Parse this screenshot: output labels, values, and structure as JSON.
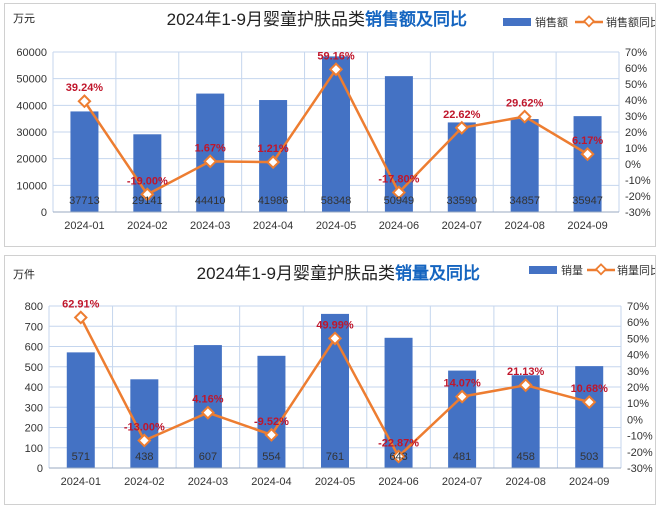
{
  "colors": {
    "bar": "#4472c4",
    "line": "#ed7d31",
    "pct_label": "#c0162b",
    "title_accent": "#1565c0",
    "grid": "#c5d6ee"
  },
  "chart_data": [
    {
      "type": "bar",
      "title_plain": "2024年1-9月婴童护肤品类",
      "title_strong": "销售额及同比",
      "unit": "万元",
      "categories": [
        "2024-01",
        "2024-02",
        "2024-03",
        "2024-04",
        "2024-05",
        "2024-06",
        "2024-07",
        "2024-08",
        "2024-09"
      ],
      "series": [
        {
          "name": "销售额",
          "type": "bar",
          "axis": "left",
          "values": [
            37713,
            29141,
            44410,
            41986,
            58348,
            50949,
            33590,
            34857,
            35947
          ]
        },
        {
          "name": "销售额同比",
          "type": "line",
          "axis": "right",
          "values": [
            39.24,
            -19.0,
            1.67,
            1.21,
            59.16,
            -17.8,
            22.62,
            29.62,
            6.17
          ]
        }
      ],
      "value_labels": [
        "37713",
        "29141",
        "44410",
        "41986",
        "58348",
        "50949",
        "33590",
        "34857",
        "35947"
      ],
      "pct_labels": [
        "39.24%",
        "-19.00%",
        "1.67%",
        "1.21%",
        "59.16%",
        "-17.80%",
        "22.62%",
        "29.62%",
        "6.17%"
      ],
      "ylim": [
        0,
        60000
      ],
      "yticks": [
        0,
        10000,
        20000,
        30000,
        40000,
        50000,
        60000
      ],
      "ytick_labels": [
        "0",
        "10000",
        "20000",
        "30000",
        "40000",
        "50000",
        "60000"
      ],
      "y2lim": [
        -30,
        70
      ],
      "y2ticks": [
        -30,
        -20,
        -10,
        0,
        10,
        20,
        30,
        40,
        50,
        60,
        70
      ],
      "y2tick_labels": [
        "-30%",
        "-20%",
        "-10%",
        "0%",
        "10%",
        "20%",
        "30%",
        "40%",
        "50%",
        "60%",
        "70%"
      ],
      "legend": [
        "销售额",
        "销售额同比"
      ],
      "legend_position": "top-right",
      "grid": true
    },
    {
      "type": "bar",
      "title_plain": "2024年1-9月婴童护肤品类",
      "title_strong": "销量及同比",
      "unit": "万件",
      "categories": [
        "2024-01",
        "2024-02",
        "2024-03",
        "2024-04",
        "2024-05",
        "2024-06",
        "2024-07",
        "2024-08",
        "2024-09"
      ],
      "series": [
        {
          "name": "销量",
          "type": "bar",
          "axis": "left",
          "values": [
            571,
            438,
            607,
            554,
            761,
            643,
            481,
            458,
            503
          ]
        },
        {
          "name": "销量同比",
          "type": "line",
          "axis": "right",
          "values": [
            62.91,
            -13.0,
            4.16,
            -9.52,
            49.99,
            -22.87,
            14.07,
            21.13,
            10.68
          ]
        }
      ],
      "value_labels": [
        "571",
        "438",
        "607",
        "554",
        "761",
        "643",
        "481",
        "458",
        "503"
      ],
      "pct_labels": [
        "62.91%",
        "-13.00%",
        "4.16%",
        "-9.52%",
        "49.99%",
        "-22.87%",
        "14.07%",
        "21.13%",
        "10.68%"
      ],
      "ylim": [
        0,
        800
      ],
      "yticks": [
        0,
        100,
        200,
        300,
        400,
        500,
        600,
        700,
        800
      ],
      "ytick_labels": [
        "0",
        "100",
        "200",
        "300",
        "400",
        "500",
        "600",
        "700",
        "800"
      ],
      "y2lim": [
        -30,
        70
      ],
      "y2ticks": [
        -30,
        -20,
        -10,
        0,
        10,
        20,
        30,
        40,
        50,
        60,
        70
      ],
      "y2tick_labels": [
        "-30%",
        "-20%",
        "-10%",
        "0%",
        "10%",
        "20%",
        "30%",
        "40%",
        "50%",
        "60%",
        "70%"
      ],
      "legend": [
        "销量",
        "销量同比"
      ],
      "legend_position": "top-right",
      "grid": true
    }
  ]
}
